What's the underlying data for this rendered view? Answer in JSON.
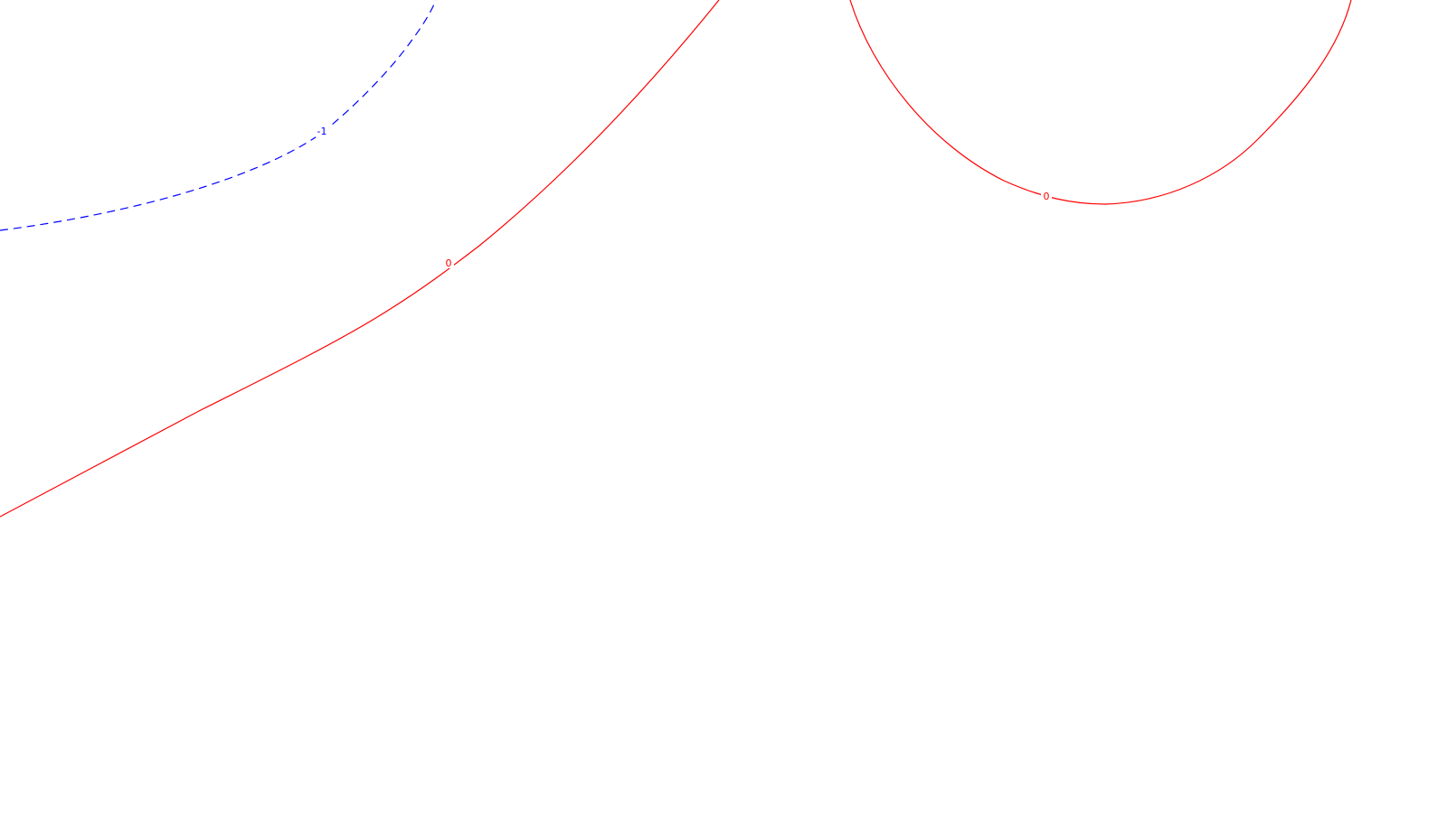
{
  "map": {
    "background": "#ffffff",
    "contours": [
      {
        "id": "contour-neg1",
        "level_label": "-1",
        "color": "#0000ff",
        "style": "dashed"
      },
      {
        "id": "contour-0-left",
        "level_label": "0",
        "color": "#ff0000",
        "style": "solid"
      },
      {
        "id": "contour-0-right",
        "level_label": "0",
        "color": "#ff0000",
        "style": "solid"
      }
    ]
  }
}
